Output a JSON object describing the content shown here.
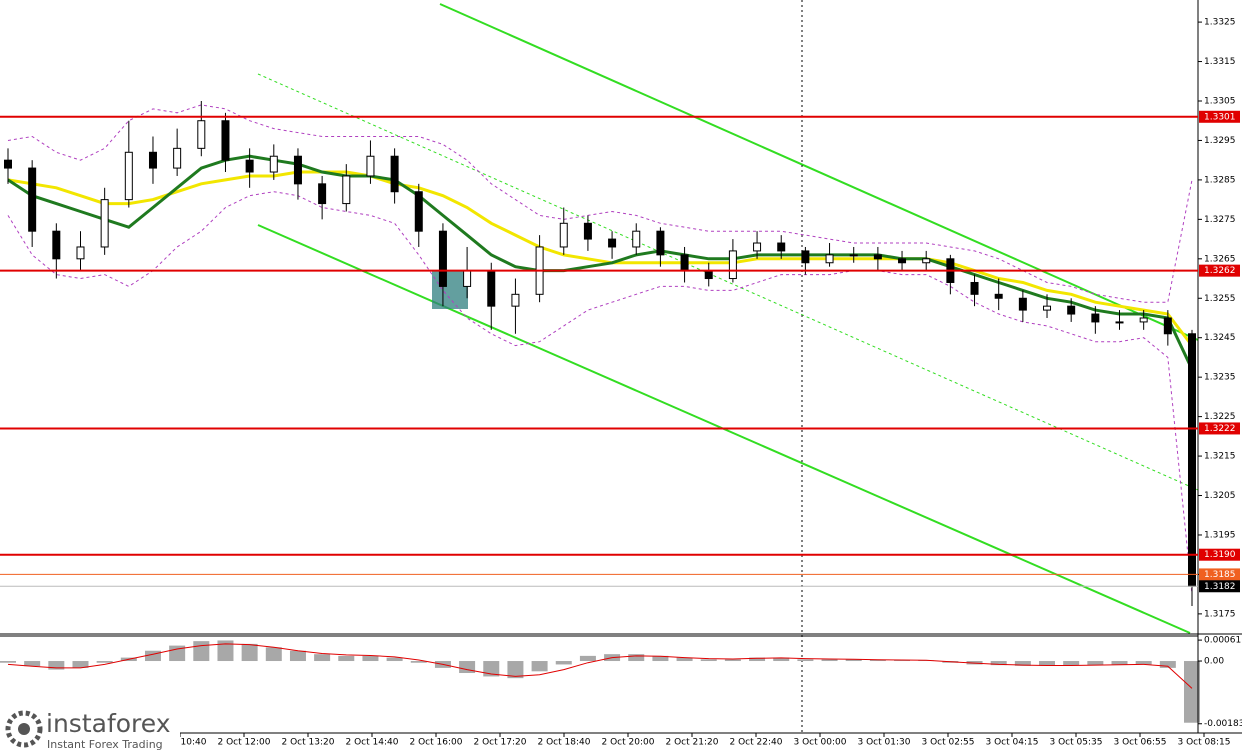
{
  "chart_data": [
    {
      "type": "candlestick",
      "ylim": [
        1.31699,
        1.33306
      ],
      "yticks": [
        1.3325,
        1.3315,
        1.3305,
        1.3295,
        1.3285,
        1.3275,
        1.3265,
        1.3255,
        1.3245,
        1.3235,
        1.3225,
        1.3215,
        1.3205,
        1.3195,
        1.3185,
        1.3175
      ],
      "open": [
        1.329,
        1.3288,
        1.3272,
        1.3265,
        1.3268,
        1.328,
        1.3292,
        1.3288,
        1.3293,
        1.33,
        1.329,
        1.3287,
        1.3291,
        1.3284,
        1.3279,
        1.3286,
        1.3291,
        1.3282,
        1.3272,
        1.3258,
        1.3262,
        1.3253,
        1.3256,
        1.3268,
        1.3274,
        1.327,
        1.3268,
        1.3272,
        1.3266,
        1.3262,
        1.326,
        1.3267,
        1.3269,
        1.3267,
        1.3264,
        1.3266,
        1.3266,
        1.3265,
        1.3264,
        1.3265,
        1.3259,
        1.3256,
        1.3255,
        1.3252,
        1.3253,
        1.3251,
        1.3249,
        1.3249,
        1.325,
        1.3246
      ],
      "high": [
        1.3293,
        1.329,
        1.3274,
        1.3272,
        1.3283,
        1.33,
        1.3296,
        1.3298,
        1.3305,
        1.3302,
        1.3293,
        1.3294,
        1.3293,
        1.3286,
        1.3289,
        1.3295,
        1.3293,
        1.3284,
        1.3274,
        1.3268,
        1.3264,
        1.326,
        1.3271,
        1.3278,
        1.3276,
        1.3272,
        1.3274,
        1.3273,
        1.3268,
        1.3264,
        1.327,
        1.3272,
        1.3271,
        1.3268,
        1.3269,
        1.3268,
        1.3268,
        1.3267,
        1.3267,
        1.3266,
        1.3261,
        1.326,
        1.3257,
        1.3256,
        1.3255,
        1.3253,
        1.3252,
        1.3252,
        1.3252,
        1.3247
      ],
      "low": [
        1.3284,
        1.3268,
        1.326,
        1.3262,
        1.3266,
        1.3278,
        1.3284,
        1.3286,
        1.3291,
        1.3287,
        1.3283,
        1.3285,
        1.328,
        1.3275,
        1.3277,
        1.3284,
        1.3279,
        1.3268,
        1.3253,
        1.3255,
        1.3247,
        1.3246,
        1.3254,
        1.3266,
        1.3267,
        1.3265,
        1.3266,
        1.3263,
        1.3259,
        1.3258,
        1.3259,
        1.3265,
        1.3265,
        1.3261,
        1.3263,
        1.3264,
        1.3262,
        1.3262,
        1.3262,
        1.3256,
        1.3253,
        1.3252,
        1.3249,
        1.325,
        1.3249,
        1.3246,
        1.3247,
        1.3247,
        1.3243,
        1.3177
      ],
      "close": [
        1.3288,
        1.3272,
        1.3265,
        1.3268,
        1.328,
        1.3292,
        1.3288,
        1.3293,
        1.33,
        1.329,
        1.3287,
        1.3291,
        1.3284,
        1.3279,
        1.3286,
        1.3291,
        1.3282,
        1.3272,
        1.3258,
        1.3262,
        1.3253,
        1.3256,
        1.3268,
        1.3274,
        1.327,
        1.3268,
        1.3272,
        1.3266,
        1.3262,
        1.326,
        1.3267,
        1.3269,
        1.3267,
        1.3264,
        1.3266,
        1.3266,
        1.3265,
        1.3264,
        1.3265,
        1.3259,
        1.3256,
        1.3255,
        1.3252,
        1.3253,
        1.3251,
        1.3249,
        1.3249,
        1.325,
        1.3246,
        1.3182
      ],
      "series": [
        {
          "color": "#f2e600",
          "width": 3,
          "dashed": false,
          "values": [
            1.3285,
            1.3284,
            1.3283,
            1.3281,
            1.3279,
            1.3279,
            1.328,
            1.3282,
            1.3284,
            1.3285,
            1.3286,
            1.3286,
            1.3287,
            1.3287,
            1.3287,
            1.3286,
            1.3284,
            1.3283,
            1.3281,
            1.3278,
            1.3274,
            1.3271,
            1.3268,
            1.3266,
            1.3265,
            1.3264,
            1.3264,
            1.3264,
            1.3264,
            1.3264,
            1.3264,
            1.3265,
            1.3265,
            1.3265,
            1.3265,
            1.3265,
            1.3265,
            1.3265,
            1.3265,
            1.3264,
            1.3262,
            1.326,
            1.3259,
            1.3257,
            1.3256,
            1.3254,
            1.3253,
            1.3252,
            1.3251,
            1.3243
          ]
        },
        {
          "color": "#1f7a1f",
          "width": 3,
          "dashed": false,
          "values": [
            1.3285,
            1.3281,
            1.3279,
            1.3277,
            1.3275,
            1.3273,
            1.3278,
            1.3283,
            1.3288,
            1.329,
            1.3291,
            1.329,
            1.3289,
            1.3287,
            1.3286,
            1.3286,
            1.3285,
            1.3281,
            1.3276,
            1.3271,
            1.3266,
            1.3263,
            1.3262,
            1.3262,
            1.3263,
            1.3264,
            1.3266,
            1.3267,
            1.3266,
            1.3265,
            1.3265,
            1.3266,
            1.3266,
            1.3266,
            1.3266,
            1.3266,
            1.3266,
            1.3265,
            1.3265,
            1.3263,
            1.3261,
            1.3259,
            1.3257,
            1.3255,
            1.3254,
            1.3252,
            1.3251,
            1.3251,
            1.325,
            1.3237
          ]
        },
        {
          "color": "#b040c0",
          "width": 1,
          "dashed": true,
          "values": [
            1.3295,
            1.3296,
            1.3292,
            1.329,
            1.3293,
            1.33,
            1.3303,
            1.3302,
            1.3304,
            1.3303,
            1.33,
            1.3298,
            1.3297,
            1.3296,
            1.3296,
            1.3296,
            1.3296,
            1.3296,
            1.3294,
            1.329,
            1.3284,
            1.328,
            1.3276,
            1.3275,
            1.3276,
            1.3277,
            1.3276,
            1.3274,
            1.3273,
            1.3272,
            1.3272,
            1.3272,
            1.3272,
            1.3271,
            1.327,
            1.3269,
            1.3269,
            1.3269,
            1.3269,
            1.3268,
            1.3267,
            1.3265,
            1.3262,
            1.3259,
            1.3258,
            1.3256,
            1.3255,
            1.3254,
            1.3254,
            1.3285
          ]
        },
        {
          "color": "#b040c0",
          "width": 1,
          "dashed": true,
          "values": [
            1.3276,
            1.3266,
            1.3261,
            1.326,
            1.3261,
            1.3258,
            1.3262,
            1.3268,
            1.3272,
            1.3278,
            1.3281,
            1.3282,
            1.3281,
            1.3278,
            1.3277,
            1.3276,
            1.3274,
            1.3266,
            1.3257,
            1.325,
            1.3246,
            1.3243,
            1.3244,
            1.3248,
            1.3252,
            1.3254,
            1.3256,
            1.3258,
            1.3258,
            1.3257,
            1.3257,
            1.3259,
            1.3261,
            1.3261,
            1.3261,
            1.3262,
            1.3262,
            1.3261,
            1.3261,
            1.3258,
            1.3254,
            1.3251,
            1.3249,
            1.3248,
            1.3246,
            1.3244,
            1.3244,
            1.3245,
            1.324,
            1.318
          ]
        }
      ],
      "levels": [
        1.3301,
        1.3262,
        1.3222,
        {
          "value": 1.319,
          "label": "1.3190"
        }
      ],
      "level_color": "#e00000",
      "ask": 1.3185,
      "ask_color": "#f06020",
      "last": 1.3182,
      "xticklabels": [
        "2 Oct 10:40",
        "2 Oct 12:00",
        "2 Oct 13:20",
        "2 Oct 14:40",
        "2 Oct 16:00",
        "2 Oct 17:20",
        "2 Oct 18:40",
        "2 Oct 20:00",
        "2 Oct 21:20",
        "2 Oct 22:40",
        "3 Oct 00:00",
        "3 Oct 01:30",
        "3 Oct 02:55",
        "3 Oct 04:15",
        "3 Oct 05:35",
        "3 Oct 06:55",
        "3 Oct 08:15"
      ]
    },
    {
      "type": "macd",
      "ylim": [
        -0.0021,
        0.00073
      ],
      "yticks": [
        0.00061,
        {
          "value": 0,
          "label": "0.00"
        },
        -0.00183
      ],
      "histogram_color": "#a8a8a8",
      "histogram": [
        -5e-05,
        -0.00015,
        -0.00025,
        -0.0002,
        -5e-05,
        0.0001,
        0.0003,
        0.00045,
        0.00058,
        0.0006,
        0.0005,
        0.0004,
        0.0003,
        0.0002,
        0.00015,
        0.00015,
        0.0001,
        -5e-05,
        -0.0002,
        -0.00035,
        -0.00045,
        -0.0005,
        -0.0003,
        -0.0001,
        0.00015,
        0.0002,
        0.0002,
        0.00015,
        0.0001,
        5e-05,
        5e-05,
        0.0001,
        0.0001,
        5e-05,
        5e-05,
        5e-05,
        3e-05,
        2e-05,
        2e-05,
        -5e-05,
        -0.0001,
        -0.00012,
        -0.00014,
        -0.00014,
        -0.00013,
        -0.00012,
        -0.0001,
        -0.0001,
        -0.0002,
        -0.0018
      ],
      "signal_color": "#e00000",
      "signal": [
        -0.0001,
        -0.00015,
        -0.0002,
        -0.0002,
        -0.0001,
        5e-05,
        0.0002,
        0.00035,
        0.00045,
        0.0005,
        0.00048,
        0.0004,
        0.0003,
        0.00022,
        0.00018,
        0.00016,
        0.00012,
        3e-05,
        -0.0001,
        -0.00025,
        -0.00038,
        -0.00045,
        -0.0004,
        -0.00025,
        -5e-05,
        0.0001,
        0.00015,
        0.00014,
        0.0001,
        7e-05,
        6e-05,
        8e-05,
        9e-05,
        7e-05,
        6e-05,
        5e-05,
        4e-05,
        3e-05,
        2e-05,
        -2e-05,
        -6e-05,
        -0.0001,
        -0.00012,
        -0.00013,
        -0.00013,
        -0.00012,
        -0.00011,
        -0.0001,
        -0.00015,
        -0.0008
      ]
    }
  ],
  "logo": {
    "name": "instaforex",
    "tagline": "Instant Forex Trading"
  }
}
